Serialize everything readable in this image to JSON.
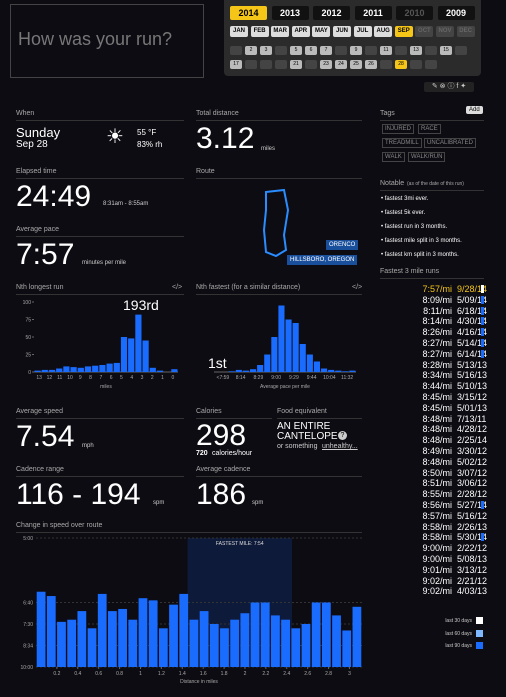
{
  "prompt": "How was your run?",
  "calendar": {
    "years": [
      {
        "label": "2014",
        "selected": true
      },
      {
        "label": "2013"
      },
      {
        "label": "2012"
      },
      {
        "label": "2011"
      },
      {
        "label": "2010",
        "disabled": true
      },
      {
        "label": "2009"
      }
    ],
    "months": [
      {
        "label": "JAN"
      },
      {
        "label": "FEB"
      },
      {
        "label": "MAR"
      },
      {
        "label": "APR"
      },
      {
        "label": "MAY"
      },
      {
        "label": "JUN"
      },
      {
        "label": "JUL"
      },
      {
        "label": "AUG"
      },
      {
        "label": "SEP",
        "selected": true
      },
      {
        "label": "OCT",
        "disabled": true
      },
      {
        "label": "NOV",
        "disabled": true
      },
      {
        "label": "DEC",
        "disabled": true
      }
    ],
    "days": [
      {
        "day": 2
      },
      {
        "day": 3
      },
      {
        "day": 5
      },
      {
        "day": 6
      },
      {
        "day": 7
      },
      {
        "day": 9
      },
      {
        "day": 11
      },
      {
        "day": 13
      },
      {
        "day": 15
      },
      {
        "day": 17
      },
      {
        "day": 21
      },
      {
        "day": 23
      },
      {
        "day": 24
      },
      {
        "day": 25
      },
      {
        "day": 26
      },
      {
        "day": 28,
        "selected": true
      }
    ]
  },
  "when": {
    "label": "When",
    "day": "Sunday",
    "date": "Sep 28",
    "temperature": "55 °F",
    "humidity": "83% rh"
  },
  "distance": {
    "label": "Total distance",
    "value": "3.12",
    "unit": "miles"
  },
  "elapsed": {
    "label": "Elapsed time",
    "value": "24:49",
    "range": "8:31am - 8:55am"
  },
  "route": {
    "label": "Route",
    "places": [
      "ORENCO",
      "HILLSBORO, OREGON"
    ]
  },
  "pace": {
    "label": "Average pace",
    "value": "7:57",
    "unit": "minutes per mile"
  },
  "longest": {
    "title": "Nth longest run",
    "link": "</>",
    "annotation": "193rd",
    "color": "#1a6cff",
    "values": [
      2,
      3,
      3,
      5,
      8,
      7,
      6,
      8,
      9,
      10,
      12,
      13,
      50,
      48,
      82,
      45,
      6,
      2,
      0,
      4
    ],
    "ylim": [
      0,
      100
    ],
    "yticks": [
      0,
      25,
      50,
      75,
      100
    ],
    "xtick_labels": [
      "13",
      "12",
      "11",
      "10",
      "9",
      "8",
      "7",
      "6",
      "5",
      "4",
      "3",
      "2",
      "1",
      "0"
    ],
    "xlabel": "miles"
  },
  "fastest_hist": {
    "title": "Nth fastest (for a similar distance)",
    "link": "</>",
    "annotation": "1st",
    "color": "#1a6cff",
    "values": [
      0,
      0,
      1,
      3,
      2,
      4,
      10,
      25,
      50,
      95,
      75,
      70,
      40,
      25,
      15,
      5,
      3,
      2,
      1,
      2
    ],
    "ylim": [
      0,
      100
    ],
    "xtick_labels": [
      "<7:59",
      "8:14",
      "8:29",
      "9:00",
      "9:29",
      "9:44",
      "10:04",
      "11:32"
    ],
    "xlabel": "Average pace per mile"
  },
  "speed": {
    "label": "Average speed",
    "value": "7.54",
    "unit": "mph"
  },
  "calories": {
    "label": "Calories",
    "value": "298",
    "rate": "720",
    "rate_unit": "calories/hour"
  },
  "food": {
    "label": "Food equivalent",
    "line1": "AN ENTIRE",
    "line2": "CANTELOPE",
    "help": "?",
    "alt_prefix": "or something",
    "alt_link": "unhealthy..."
  },
  "cadence_range": {
    "label": "Cadence range",
    "value": "116 - 194",
    "unit": "spm"
  },
  "cadence_avg": {
    "label": "Average cadence",
    "value": "186",
    "unit": "spm"
  },
  "speed_chart": {
    "title": "Change in speed over route",
    "color": "#1a6cff",
    "values": [
      9.5,
      9.3,
      8.1,
      8.2,
      8.6,
      7.8,
      9.4,
      8.6,
      8.7,
      8.2,
      9.2,
      9.1,
      7.8,
      8.9,
      9.4,
      8.2,
      8.6,
      8.0,
      7.8,
      8.2,
      8.5,
      9.0,
      9.0,
      8.4,
      8.2,
      7.8,
      8.0,
      9.0,
      9.0,
      8.4,
      7.7,
      8.8
    ],
    "ylim": [
      6,
      12
    ],
    "yticks": [
      {
        "value": 12,
        "label": "5:00"
      },
      {
        "value": 9,
        "label": "6:40"
      },
      {
        "value": 8,
        "label": "7:30"
      },
      {
        "value": 7,
        "label": "8:34"
      },
      {
        "value": 6,
        "label": "10:00"
      }
    ],
    "xlim": [
      0,
      3.12
    ],
    "xticks": [
      0.2,
      0.4,
      0.6,
      0.8,
      1,
      1.2,
      1.4,
      1.6,
      1.8,
      2,
      2.2,
      2.4,
      2.6,
      2.8,
      3
    ],
    "xlabel": "Distance in miles",
    "annotation": "FASTEST MILE: 7:54",
    "annotation_x": [
      1.45,
      2.45
    ]
  },
  "tags": {
    "label": "Tags",
    "button": "Add",
    "items": [
      "INJURED",
      "RACE",
      "TREADMILL",
      "UNCALIBRATED",
      "WALK",
      "WALK/RUN"
    ]
  },
  "notable": {
    "label": "Notable",
    "note": "(as of the date of this run)",
    "items": [
      "fastest 3mi ever.",
      "fastest 5k ever.",
      "fastest run in 3 months.",
      "fastest mile split in 3 months.",
      "fastest km split in 3 months."
    ]
  },
  "fastest_runs": {
    "label": "Fastest 3 mile runs",
    "rows": [
      {
        "pace": "7:57/mi",
        "date": "9/28/14",
        "selected": true,
        "color": "#ffffff"
      },
      {
        "pace": "8:09/mi",
        "date": "5/09/14",
        "color": "#1a6cff"
      },
      {
        "pace": "8:11/mi",
        "date": "6/18/14",
        "color": "#1a6cff"
      },
      {
        "pace": "8:14/mi",
        "date": "4/30/14",
        "color": "#1a6cff"
      },
      {
        "pace": "8:26/mi",
        "date": "4/16/14",
        "color": "#1a6cff"
      },
      {
        "pace": "8:27/mi",
        "date": "5/14/14",
        "color": "#1a6cff"
      },
      {
        "pace": "8:27/mi",
        "date": "6/14/14",
        "color": "#1a6cff"
      },
      {
        "pace": "8:28/mi",
        "date": "5/13/13"
      },
      {
        "pace": "8:34/mi",
        "date": "5/16/13"
      },
      {
        "pace": "8:44/mi",
        "date": "5/10/13"
      },
      {
        "pace": "8:45/mi",
        "date": "3/15/12"
      },
      {
        "pace": "8:45/mi",
        "date": "5/01/13"
      },
      {
        "pace": "8:48/mi",
        "date": "7/13/11"
      },
      {
        "pace": "8:48/mi",
        "date": "4/28/12"
      },
      {
        "pace": "8:48/mi",
        "date": "2/25/14"
      },
      {
        "pace": "8:49/mi",
        "date": "3/30/12"
      },
      {
        "pace": "8:48/mi",
        "date": "5/02/12"
      },
      {
        "pace": "8:50/mi",
        "date": "3/07/12"
      },
      {
        "pace": "8:51/mi",
        "date": "3/06/12"
      },
      {
        "pace": "8:55/mi",
        "date": "2/28/12"
      },
      {
        "pace": "8:56/mi",
        "date": "5/27/14",
        "color": "#1a6cff"
      },
      {
        "pace": "8:57/mi",
        "date": "5/16/12"
      },
      {
        "pace": "8:58/mi",
        "date": "2/26/13"
      },
      {
        "pace": "8:58/mi",
        "date": "5/30/14",
        "color": "#1a6cff"
      },
      {
        "pace": "9:00/mi",
        "date": "2/22/12"
      },
      {
        "pace": "9:00/mi",
        "date": "5/08/13"
      },
      {
        "pace": "9:01/mi",
        "date": "3/13/12"
      },
      {
        "pace": "9:02/mi",
        "date": "2/21/12"
      },
      {
        "pace": "9:02/mi",
        "date": "4/03/13"
      }
    ],
    "legend": [
      {
        "name": "last 30 days",
        "color": "#ffffff"
      },
      {
        "name": "last 60 days",
        "color": "#7fb8ff"
      },
      {
        "name": "last 90 days",
        "color": "#1a6cff"
      }
    ]
  }
}
